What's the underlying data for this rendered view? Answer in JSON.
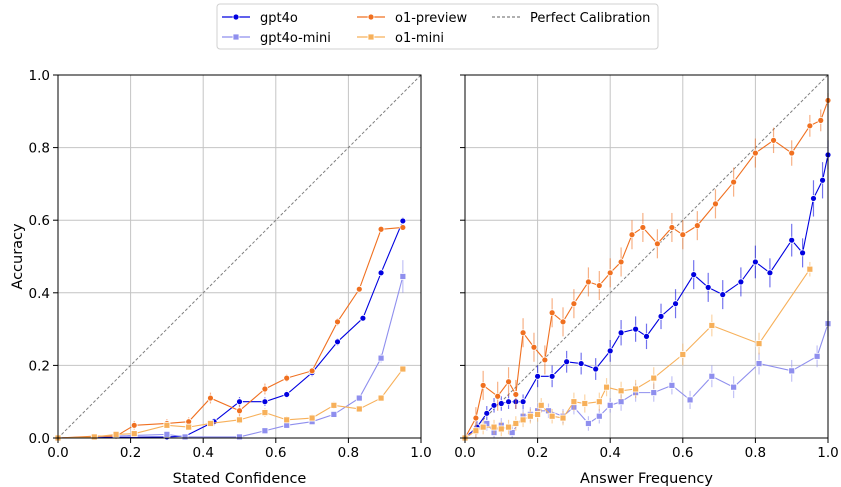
{
  "chart_data": [
    {
      "type": "line",
      "xlabel": "Stated Confidence",
      "ylabel": "Accuracy",
      "xlim": [
        0,
        1
      ],
      "ylim": [
        0,
        1
      ],
      "xticks": [
        "0.0",
        "0.2",
        "0.4",
        "0.6",
        "0.8",
        "1.0"
      ],
      "yticks": [
        "0.0",
        "0.2",
        "0.4",
        "0.6",
        "0.8",
        "1.0"
      ],
      "grid": true,
      "reference_line": {
        "name": "Perfect Calibration",
        "points": [
          [
            0,
            0
          ],
          [
            1,
            1
          ]
        ]
      },
      "series": [
        {
          "name": "gpt4o",
          "color": "#0000e0",
          "marker": "circle",
          "points": [
            [
              0.0,
              0.0
            ],
            [
              0.3,
              0.003
            ],
            [
              0.35,
              0.005
            ],
            [
              0.43,
              0.045
            ],
            [
              0.5,
              0.1
            ],
            [
              0.57,
              0.1
            ],
            [
              0.63,
              0.12
            ],
            [
              0.7,
              0.18
            ],
            [
              0.77,
              0.265
            ],
            [
              0.84,
              0.33
            ],
            [
              0.89,
              0.455
            ],
            [
              0.95,
              0.598
            ]
          ],
          "err": [
            0,
            0.004,
            0.004,
            0.01,
            0.013,
            0.012,
            0.01,
            0.01,
            0.01,
            0.008,
            0.008,
            0.01
          ]
        },
        {
          "name": "gpt4o-mini",
          "color": "#8f8fee",
          "marker": "square",
          "points": [
            [
              0.0,
              0.0
            ],
            [
              0.3,
              0.01
            ],
            [
              0.35,
              0.003
            ],
            [
              0.5,
              0.003
            ],
            [
              0.57,
              0.02
            ],
            [
              0.63,
              0.035
            ],
            [
              0.7,
              0.045
            ],
            [
              0.76,
              0.065
            ],
            [
              0.83,
              0.11
            ],
            [
              0.89,
              0.22
            ],
            [
              0.95,
              0.445
            ]
          ],
          "err": [
            0,
            0.004,
            0.003,
            0.003,
            0.006,
            0.006,
            0.006,
            0.008,
            0.008,
            0.012,
            0.045
          ]
        },
        {
          "name": "o1-preview",
          "color": "#f07020",
          "marker": "circle",
          "points": [
            [
              0.0,
              0.0
            ],
            [
              0.1,
              0.005
            ],
            [
              0.16,
              0.005
            ],
            [
              0.21,
              0.035
            ],
            [
              0.3,
              0.04
            ],
            [
              0.36,
              0.045
            ],
            [
              0.42,
              0.11
            ],
            [
              0.5,
              0.075
            ],
            [
              0.57,
              0.135
            ],
            [
              0.63,
              0.165
            ],
            [
              0.7,
              0.185
            ],
            [
              0.77,
              0.32
            ],
            [
              0.83,
              0.41
            ],
            [
              0.89,
              0.575
            ],
            [
              0.95,
              0.58
            ]
          ],
          "err": [
            0,
            0.005,
            0.005,
            0.012,
            0.012,
            0.012,
            0.015,
            0.015,
            0.015,
            0.01,
            0.008,
            0.01,
            0.008,
            0.006,
            0.006
          ]
        },
        {
          "name": "o1-mini",
          "color": "#f7b05a",
          "marker": "square",
          "points": [
            [
              0.0,
              0.0
            ],
            [
              0.1,
              0.003
            ],
            [
              0.16,
              0.01
            ],
            [
              0.21,
              0.012
            ],
            [
              0.3,
              0.035
            ],
            [
              0.36,
              0.03
            ],
            [
              0.42,
              0.04
            ],
            [
              0.5,
              0.05
            ],
            [
              0.57,
              0.07
            ],
            [
              0.63,
              0.05
            ],
            [
              0.7,
              0.055
            ],
            [
              0.76,
              0.09
            ],
            [
              0.83,
              0.08
            ],
            [
              0.89,
              0.11
            ],
            [
              0.95,
              0.19
            ]
          ],
          "err": [
            0,
            0.003,
            0.005,
            0.006,
            0.008,
            0.008,
            0.008,
            0.01,
            0.012,
            0.01,
            0.01,
            0.01,
            0.008,
            0.008,
            0.008
          ]
        }
      ]
    },
    {
      "type": "line",
      "xlabel": "Answer Frequency",
      "ylabel": "",
      "xlim": [
        0,
        1
      ],
      "ylim": [
        0,
        1
      ],
      "xticks": [
        "0.0",
        "0.2",
        "0.4",
        "0.6",
        "0.8",
        "1.0"
      ],
      "yticks": [],
      "grid": true,
      "reference_line": {
        "name": "Perfect Calibration",
        "points": [
          [
            0,
            0
          ],
          [
            1,
            1
          ]
        ]
      },
      "series": [
        {
          "name": "gpt4o",
          "color": "#0000e0",
          "marker": "circle",
          "points": [
            [
              0.0,
              0.0
            ],
            [
              0.033,
              0.03
            ],
            [
              0.06,
              0.068
            ],
            [
              0.08,
              0.09
            ],
            [
              0.1,
              0.095
            ],
            [
              0.12,
              0.1
            ],
            [
              0.14,
              0.1
            ],
            [
              0.16,
              0.1
            ],
            [
              0.2,
              0.17
            ],
            [
              0.24,
              0.17
            ],
            [
              0.28,
              0.21
            ],
            [
              0.32,
              0.205
            ],
            [
              0.36,
              0.19
            ],
            [
              0.4,
              0.24
            ],
            [
              0.43,
              0.29
            ],
            [
              0.47,
              0.3
            ],
            [
              0.5,
              0.28
            ],
            [
              0.54,
              0.335
            ],
            [
              0.58,
              0.37
            ],
            [
              0.63,
              0.45
            ],
            [
              0.67,
              0.415
            ],
            [
              0.71,
              0.395
            ],
            [
              0.76,
              0.43
            ],
            [
              0.8,
              0.485
            ],
            [
              0.84,
              0.455
            ],
            [
              0.9,
              0.545
            ],
            [
              0.93,
              0.51
            ],
            [
              0.96,
              0.66
            ],
            [
              0.985,
              0.71
            ],
            [
              1.0,
              0.78
            ]
          ],
          "err": [
            0,
            0.02,
            0.02,
            0.02,
            0.02,
            0.02,
            0.02,
            0.02,
            0.03,
            0.03,
            0.03,
            0.03,
            0.03,
            0.03,
            0.035,
            0.035,
            0.035,
            0.035,
            0.04,
            0.04,
            0.04,
            0.04,
            0.04,
            0.045,
            0.04,
            0.045,
            0.04,
            0.05,
            0.05,
            0.04
          ]
        },
        {
          "name": "gpt4o-mini",
          "color": "#8f8fee",
          "marker": "square",
          "points": [
            [
              0.0,
              0.0
            ],
            [
              0.03,
              0.02
            ],
            [
              0.06,
              0.04
            ],
            [
              0.08,
              0.015
            ],
            [
              0.1,
              0.035
            ],
            [
              0.13,
              0.015
            ],
            [
              0.16,
              0.06
            ],
            [
              0.18,
              0.065
            ],
            [
              0.2,
              0.075
            ],
            [
              0.23,
              0.075
            ],
            [
              0.27,
              0.06
            ],
            [
              0.3,
              0.085
            ],
            [
              0.34,
              0.04
            ],
            [
              0.37,
              0.06
            ],
            [
              0.4,
              0.09
            ],
            [
              0.43,
              0.1
            ],
            [
              0.47,
              0.125
            ],
            [
              0.52,
              0.125
            ],
            [
              0.57,
              0.145
            ],
            [
              0.62,
              0.105
            ],
            [
              0.68,
              0.17
            ],
            [
              0.74,
              0.14
            ],
            [
              0.81,
              0.205
            ],
            [
              0.9,
              0.185
            ],
            [
              0.97,
              0.225
            ],
            [
              1.0,
              0.315
            ]
          ],
          "err": [
            0,
            0.02,
            0.02,
            0.02,
            0.02,
            0.02,
            0.02,
            0.02,
            0.02,
            0.02,
            0.02,
            0.02,
            0.02,
            0.02,
            0.02,
            0.025,
            0.025,
            0.025,
            0.025,
            0.025,
            0.03,
            0.03,
            0.03,
            0.03,
            0.03,
            0.035
          ]
        },
        {
          "name": "o1-preview",
          "color": "#f07020",
          "marker": "circle",
          "points": [
            [
              0.0,
              0.0
            ],
            [
              0.03,
              0.055
            ],
            [
              0.05,
              0.145
            ],
            [
              0.09,
              0.115
            ],
            [
              0.12,
              0.155
            ],
            [
              0.14,
              0.12
            ],
            [
              0.16,
              0.29
            ],
            [
              0.19,
              0.25
            ],
            [
              0.22,
              0.215
            ],
            [
              0.24,
              0.345
            ],
            [
              0.27,
              0.32
            ],
            [
              0.3,
              0.37
            ],
            [
              0.34,
              0.43
            ],
            [
              0.37,
              0.42
            ],
            [
              0.4,
              0.455
            ],
            [
              0.43,
              0.485
            ],
            [
              0.46,
              0.56
            ],
            [
              0.49,
              0.58
            ],
            [
              0.53,
              0.535
            ],
            [
              0.57,
              0.58
            ],
            [
              0.6,
              0.56
            ],
            [
              0.64,
              0.585
            ],
            [
              0.69,
              0.645
            ],
            [
              0.74,
              0.705
            ],
            [
              0.8,
              0.785
            ],
            [
              0.85,
              0.82
            ],
            [
              0.9,
              0.785
            ],
            [
              0.95,
              0.86
            ],
            [
              0.98,
              0.875
            ],
            [
              1.0,
              0.93
            ]
          ],
          "err": [
            0,
            0.03,
            0.04,
            0.04,
            0.04,
            0.04,
            0.04,
            0.04,
            0.04,
            0.04,
            0.04,
            0.04,
            0.04,
            0.04,
            0.04,
            0.04,
            0.04,
            0.04,
            0.04,
            0.04,
            0.04,
            0.04,
            0.04,
            0.04,
            0.04,
            0.035,
            0.035,
            0.03,
            0.03,
            0.02
          ]
        },
        {
          "name": "o1-mini",
          "color": "#f7b05a",
          "marker": "square",
          "points": [
            [
              0.0,
              0.0
            ],
            [
              0.03,
              0.02
            ],
            [
              0.05,
              0.03
            ],
            [
              0.08,
              0.03
            ],
            [
              0.1,
              0.025
            ],
            [
              0.12,
              0.03
            ],
            [
              0.14,
              0.04
            ],
            [
              0.16,
              0.05
            ],
            [
              0.18,
              0.06
            ],
            [
              0.2,
              0.065
            ],
            [
              0.21,
              0.09
            ],
            [
              0.24,
              0.06
            ],
            [
              0.27,
              0.055
            ],
            [
              0.3,
              0.1
            ],
            [
              0.33,
              0.095
            ],
            [
              0.37,
              0.1
            ],
            [
              0.39,
              0.14
            ],
            [
              0.43,
              0.13
            ],
            [
              0.47,
              0.135
            ],
            [
              0.52,
              0.165
            ],
            [
              0.6,
              0.23
            ],
            [
              0.68,
              0.31
            ],
            [
              0.81,
              0.26
            ],
            [
              0.95,
              0.465
            ]
          ],
          "err": [
            0,
            0.02,
            0.02,
            0.02,
            0.02,
            0.02,
            0.02,
            0.02,
            0.02,
            0.02,
            0.02,
            0.02,
            0.02,
            0.025,
            0.025,
            0.025,
            0.025,
            0.025,
            0.025,
            0.03,
            0.03,
            0.03,
            0.03,
            0.02
          ]
        }
      ]
    }
  ],
  "legend": {
    "placement": "top-center",
    "entries": [
      {
        "label": "gpt4o",
        "color": "#0000e0",
        "marker": "circle",
        "dashed": false
      },
      {
        "label": "gpt4o-mini",
        "color": "#8f8fee",
        "marker": "square",
        "dashed": false
      },
      {
        "label": "o1-preview",
        "color": "#f07020",
        "marker": "circle",
        "dashed": false
      },
      {
        "label": "o1-mini",
        "color": "#f7b05a",
        "marker": "square",
        "dashed": false
      },
      {
        "label": "Perfect Calibration",
        "color": "#808080",
        "marker": "none",
        "dashed": true
      }
    ]
  }
}
